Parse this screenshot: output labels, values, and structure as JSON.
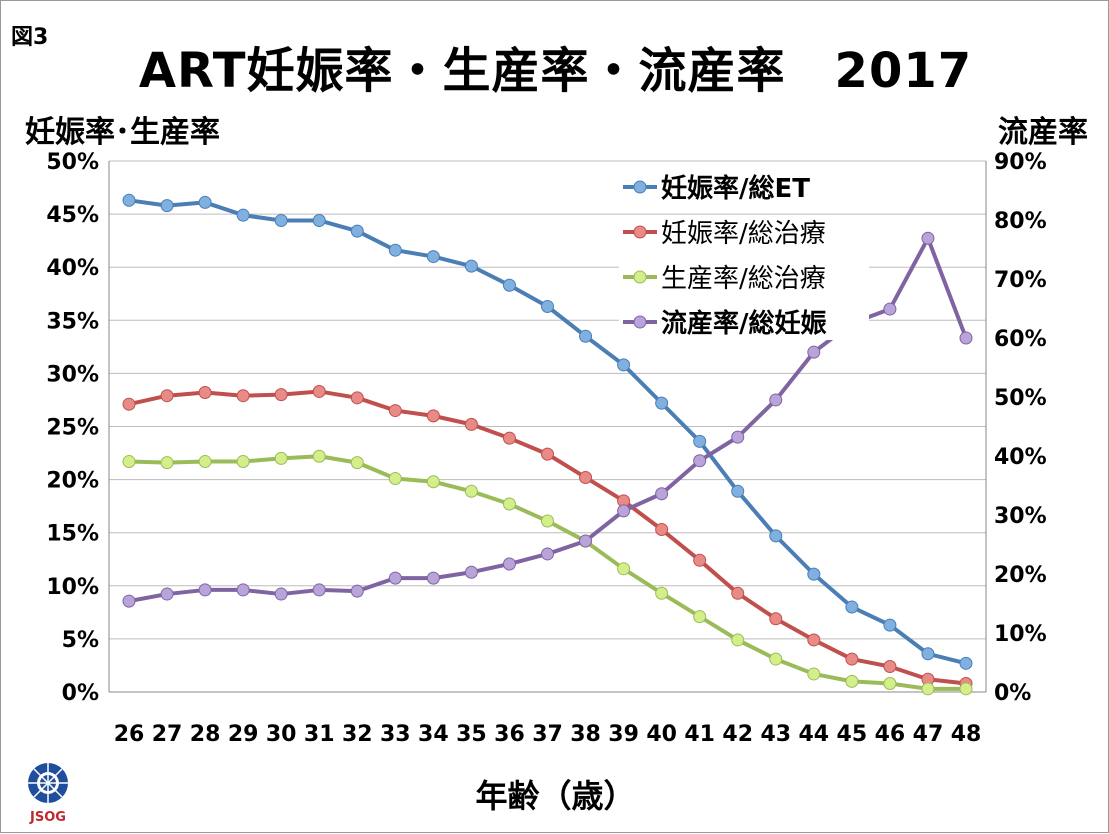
{
  "chart_data": {
    "type": "line",
    "figure_label": "図3",
    "title": "ART妊娠率・生産率・流産率　2017",
    "ylabel_left": "妊娠率･生産率",
    "ylabel_right": "流産率",
    "xlabel": "年齢（歳）",
    "ylim_left": [
      0,
      50
    ],
    "ylim_right": [
      0,
      90
    ],
    "yticks_left": [
      "0%",
      "5%",
      "10%",
      "15%",
      "20%",
      "25%",
      "30%",
      "35%",
      "40%",
      "45%",
      "50%"
    ],
    "yticks_right": [
      "0%",
      "10%",
      "20%",
      "30%",
      "40%",
      "50%",
      "60%",
      "70%",
      "80%",
      "90%"
    ],
    "grid": true,
    "legend_position": "top-right",
    "categories": [
      "26",
      "27",
      "28",
      "29",
      "30",
      "31",
      "32",
      "33",
      "34",
      "35",
      "36",
      "37",
      "38",
      "39",
      "40",
      "41",
      "42",
      "43",
      "44",
      "45",
      "46",
      "47",
      "48"
    ],
    "series": [
      {
        "name": "妊娠率/総ET",
        "axis": "left",
        "color": "#4a7eb5",
        "fill": "#7fb0e0",
        "bold": true,
        "values": [
          46.3,
          45.8,
          46.1,
          44.9,
          44.4,
          44.4,
          43.4,
          41.6,
          41.0,
          40.1,
          38.3,
          36.3,
          33.5,
          30.8,
          27.2,
          23.6,
          18.9,
          14.7,
          11.1,
          8.0,
          6.3,
          3.6,
          2.7
        ]
      },
      {
        "name": "妊娠率/総治療",
        "axis": "left",
        "color": "#c0504d",
        "fill": "#e88a86",
        "bold": false,
        "values": [
          27.1,
          27.9,
          28.2,
          27.9,
          28.0,
          28.3,
          27.7,
          26.5,
          26.0,
          25.2,
          23.9,
          22.4,
          20.2,
          18.0,
          15.3,
          12.4,
          9.3,
          6.9,
          4.9,
          3.1,
          2.4,
          1.2,
          0.8
        ]
      },
      {
        "name": "生産率/総治療",
        "axis": "left",
        "color": "#9bbb59",
        "fill": "#d4ef8a",
        "bold": false,
        "values": [
          21.7,
          21.6,
          21.7,
          21.7,
          22.0,
          22.2,
          21.6,
          20.1,
          19.8,
          18.9,
          17.7,
          16.1,
          14.2,
          11.6,
          9.3,
          7.1,
          4.9,
          3.1,
          1.7,
          1.0,
          0.8,
          0.3,
          0.3
        ]
      },
      {
        "name": "流産率/総妊娠",
        "axis": "right",
        "color": "#8064a2",
        "fill": "#b8a4d8",
        "bold": true,
        "values": [
          15.4,
          16.6,
          17.3,
          17.3,
          16.6,
          17.3,
          17.1,
          19.3,
          19.3,
          20.3,
          21.7,
          23.4,
          25.6,
          30.7,
          33.6,
          39.2,
          43.2,
          49.5,
          57.6,
          62.5,
          64.9,
          76.9,
          60.0
        ]
      }
    ]
  },
  "logo": {
    "text": "JSOG",
    "color": "#c0282d",
    "emblem_color": "#1f4e9c"
  }
}
